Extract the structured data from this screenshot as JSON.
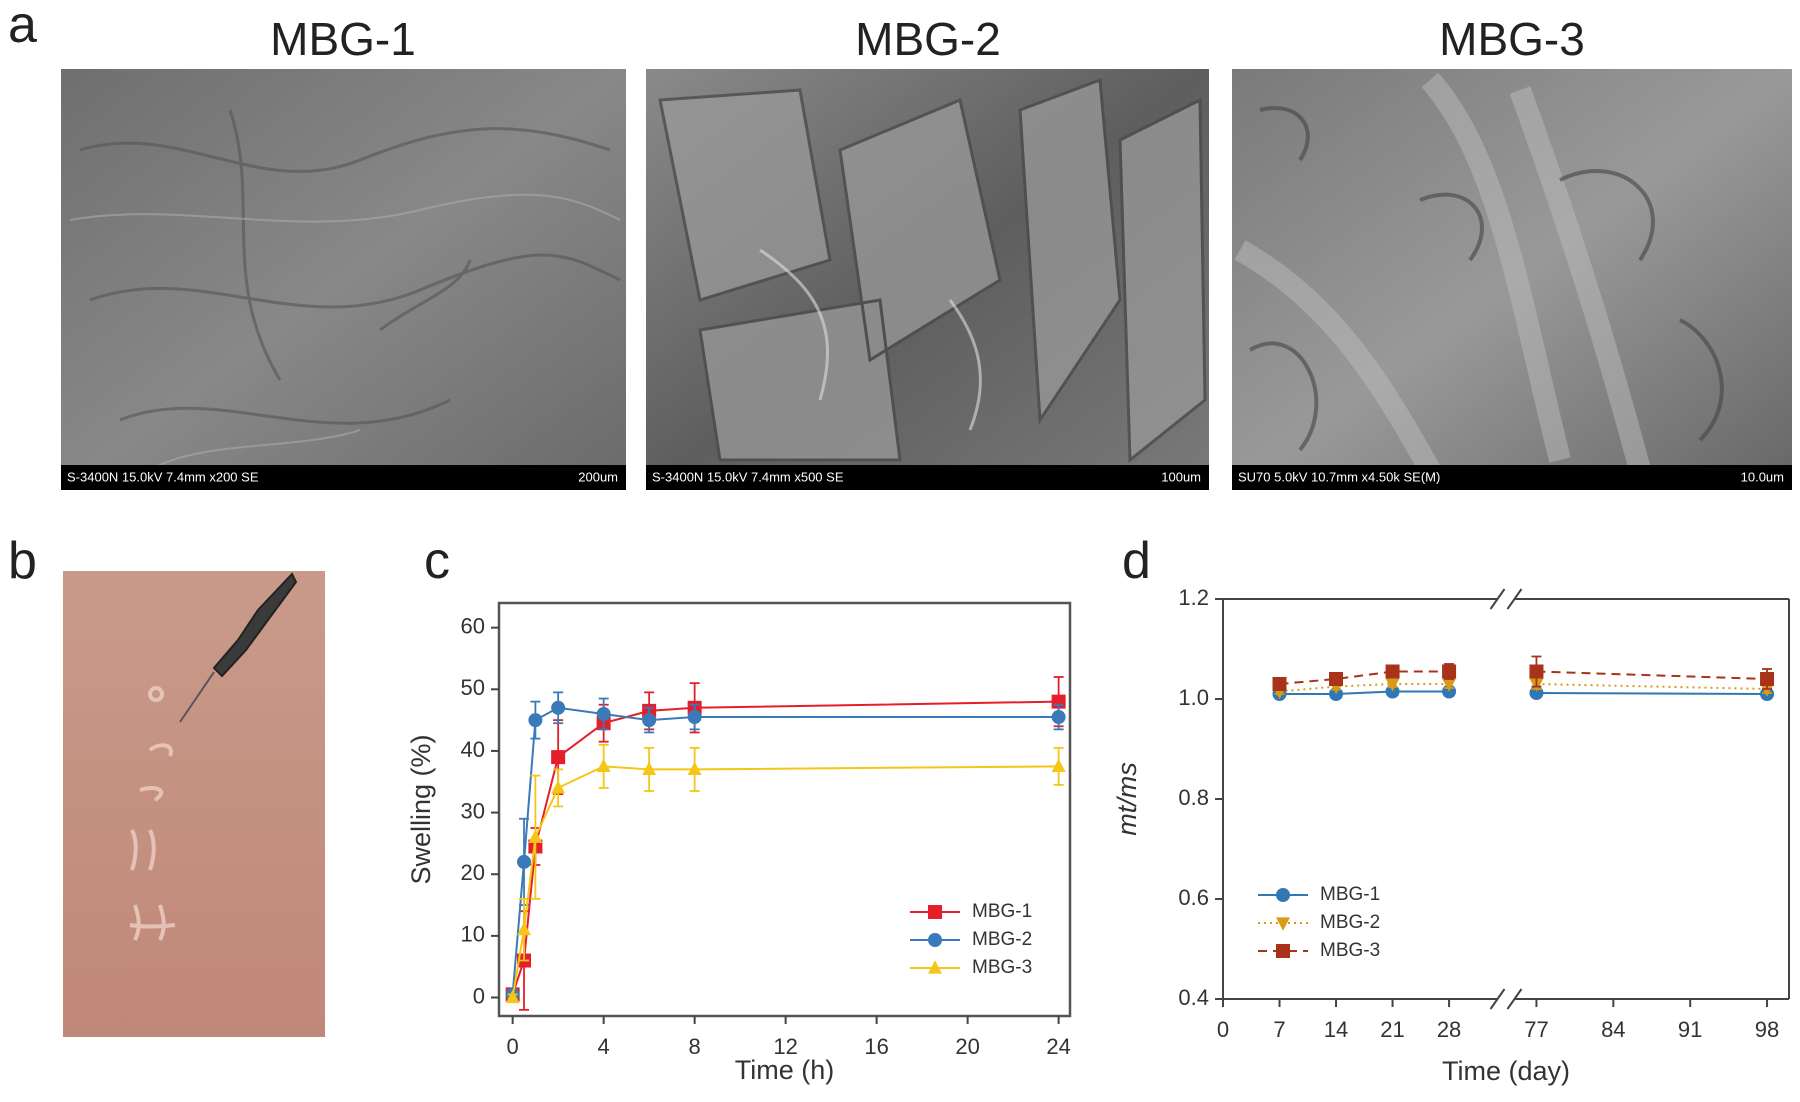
{
  "panel_labels": [
    "a",
    "b",
    "c",
    "d"
  ],
  "sem_images": [
    {
      "title": "MBG-1",
      "info": "S-3400N 15.0kV 7.4mm x200 SE",
      "scale": "200um"
    },
    {
      "title": "MBG-2",
      "info": "S-3400N 15.0kV 7.4mm x500 SE",
      "scale": "100um"
    },
    {
      "title": "MBG-3",
      "info": "SU70 5.0kV 10.7mm x4.50k SE(M)",
      "scale": "10.0um"
    }
  ],
  "chart_data": [
    {
      "type": "line",
      "xlabel": "Time (h)",
      "ylabel": "Swelling (%)",
      "x": [
        0,
        0.5,
        1,
        2,
        4,
        6,
        8,
        24
      ],
      "xlim": [
        -0.6,
        24.5
      ],
      "xticks": [
        0,
        4,
        8,
        12,
        16,
        20,
        24
      ],
      "ylim": [
        -3,
        64
      ],
      "yticks": [
        0,
        10,
        20,
        30,
        40,
        50,
        60
      ],
      "legend": "lower right",
      "series": [
        {
          "name": "MBG-1",
          "color": "#e41f2b",
          "marker": "square",
          "dash": "solid",
          "values": [
            0.5,
            6,
            24.5,
            39,
            44.5,
            46.5,
            47,
            48
          ],
          "errors": [
            1,
            8,
            3,
            6,
            3,
            3,
            4,
            4
          ]
        },
        {
          "name": "MBG-2",
          "color": "#3a7ab8",
          "marker": "circle",
          "dash": "solid",
          "values": [
            0.5,
            22,
            45,
            47,
            46,
            45,
            45.5,
            45.5
          ],
          "errors": [
            0.5,
            7,
            3,
            2.5,
            2.5,
            2,
            2,
            2
          ]
        },
        {
          "name": "MBG-3",
          "color": "#f5c518",
          "marker": "triangle-up",
          "dash": "solid",
          "values": [
            0,
            11,
            26,
            34,
            37.5,
            37,
            37,
            37.5
          ],
          "errors": [
            0.5,
            5,
            10,
            3,
            3.5,
            3.5,
            3.5,
            3
          ]
        }
      ]
    },
    {
      "type": "line",
      "xlabel": "Time (day)",
      "ylabel": "mt/ms",
      "x": [
        7,
        14,
        21,
        28,
        77,
        98
      ],
      "xlim": [
        0,
        100
      ],
      "xbreak": [
        34,
        75
      ],
      "xticks": [
        0,
        7,
        14,
        21,
        28,
        77,
        84,
        91,
        98
      ],
      "ylim": [
        0.4,
        1.2
      ],
      "yticks": [
        0.4,
        0.6,
        0.8,
        {
          "value": 1,
          "label": "1.0"
        },
        1.2
      ],
      "legend": "lower left",
      "series": [
        {
          "name": "MBG-1",
          "color": "#2f78b4",
          "marker": "circle",
          "dash": "solid",
          "values": [
            1.01,
            1.01,
            1.015,
            1.015,
            1.012,
            1.01
          ],
          "errors": [
            0.005,
            0.005,
            0.005,
            0.005,
            0.005,
            0.005
          ]
        },
        {
          "name": "MBG-2",
          "color": "#d99a16",
          "marker": "triangle-down",
          "dash": "dotted",
          "values": [
            1.015,
            1.025,
            1.03,
            1.03,
            1.03,
            1.02
          ],
          "errors": [
            0.005,
            0.006,
            0.006,
            0.008,
            0.01,
            0.008
          ]
        },
        {
          "name": "MBG-3",
          "color": "#a8321a",
          "marker": "square",
          "dash": "dashed",
          "values": [
            1.03,
            1.04,
            1.055,
            1.055,
            1.055,
            1.04
          ],
          "errors": [
            0.01,
            0.008,
            0.01,
            0.015,
            0.03,
            0.02
          ]
        }
      ]
    }
  ]
}
